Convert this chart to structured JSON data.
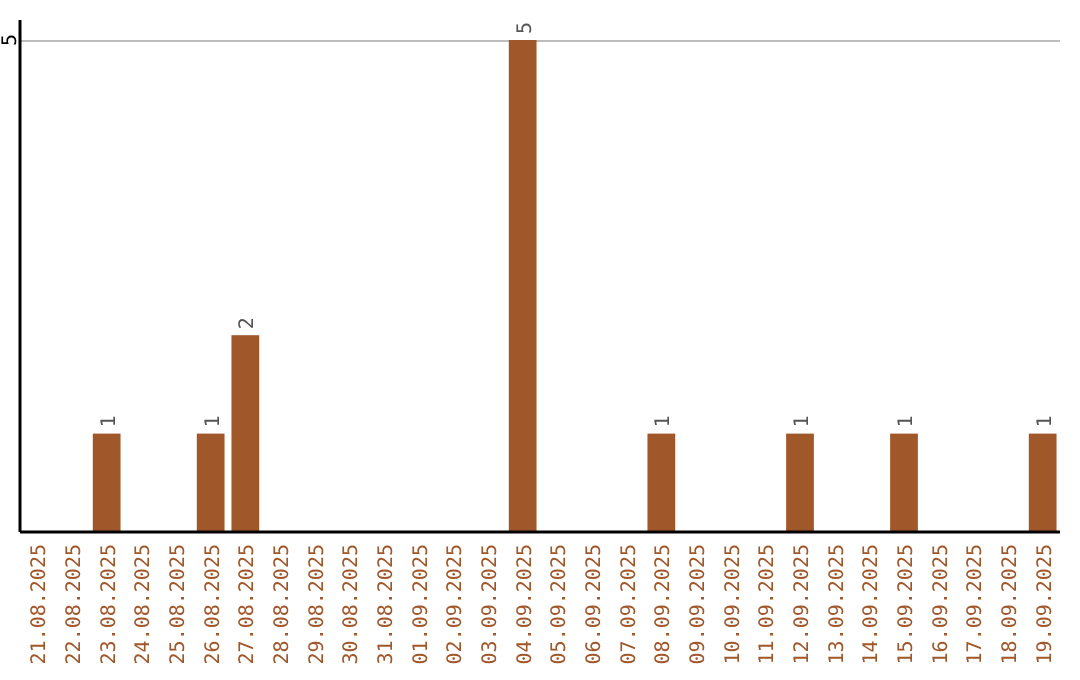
{
  "chart_data": {
    "type": "bar",
    "categories": [
      "21.08.2025",
      "22.08.2025",
      "23.08.2025",
      "24.08.2025",
      "25.08.2025",
      "26.08.2025",
      "27.08.2025",
      "28.08.2025",
      "29.08.2025",
      "30.08.2025",
      "31.08.2025",
      "01.09.2025",
      "02.09.2025",
      "03.09.2025",
      "04.09.2025",
      "05.09.2025",
      "06.09.2025",
      "07.09.2025",
      "08.09.2025",
      "09.09.2025",
      "10.09.2025",
      "11.09.2025",
      "12.09.2025",
      "13.09.2025",
      "14.09.2025",
      "15.09.2025",
      "16.09.2025",
      "17.09.2025",
      "18.09.2025",
      "19.09.2025"
    ],
    "values": [
      0,
      0,
      1,
      0,
      0,
      1,
      2,
      0,
      0,
      0,
      0,
      0,
      0,
      0,
      5,
      0,
      0,
      0,
      1,
      0,
      0,
      0,
      1,
      0,
      0,
      1,
      0,
      0,
      0,
      1
    ],
    "value_labels": [
      null,
      null,
      "1",
      null,
      null,
      "1",
      "2",
      null,
      null,
      null,
      null,
      null,
      null,
      null,
      "5",
      null,
      null,
      null,
      "1",
      null,
      null,
      null,
      "1",
      null,
      null,
      "1",
      null,
      null,
      null,
      "1"
    ],
    "color": "#a0572a",
    "ylim": [
      0,
      5
    ],
    "yticks": [
      5
    ]
  }
}
